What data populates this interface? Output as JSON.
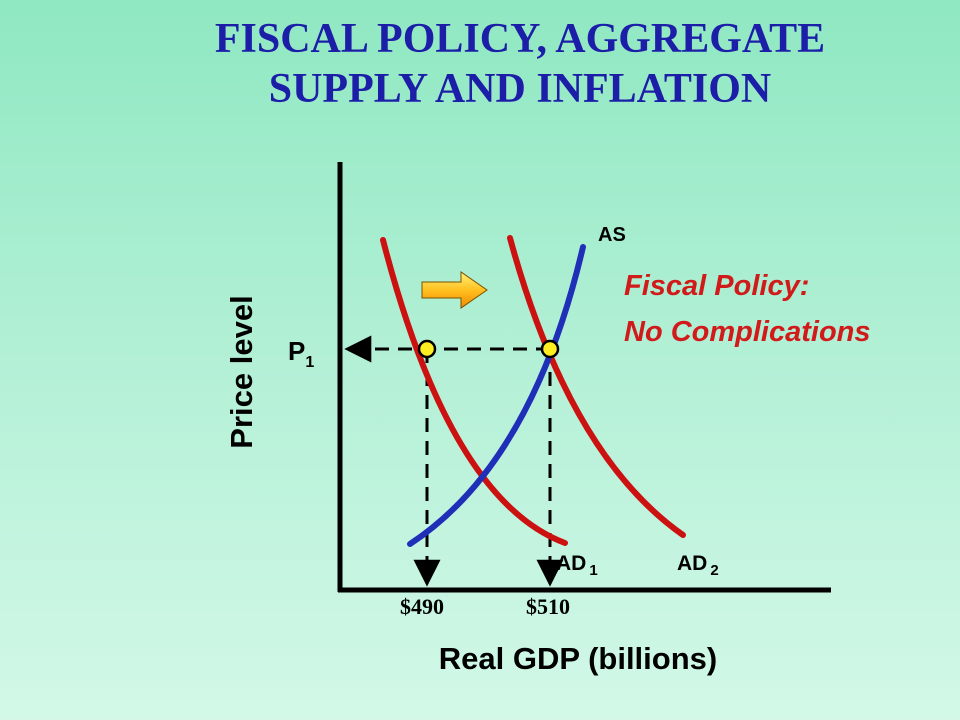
{
  "title": {
    "line1": "FISCAL POLICY, AGGREGATE",
    "line2": "SUPPLY AND INFLATION"
  },
  "axes": {
    "y_label": "Price level",
    "x_label": "Real GDP (billions)"
  },
  "price_level": {
    "base": "P",
    "sub": "1"
  },
  "gdp_ticks": [
    "$490",
    "$510"
  ],
  "curves": {
    "as": {
      "label": "AS"
    },
    "ad1": {
      "base": "AD",
      "sub": "1"
    },
    "ad2": {
      "base": "AD",
      "sub": "2"
    }
  },
  "note": {
    "line1": "Fiscal Policy:",
    "line2": "No Complications"
  },
  "colors": {
    "title": "#1c1ea8",
    "ad_curves": "#cc1111",
    "as_curve": "#1f2fb8",
    "note": "#d11a1a",
    "equilibrium_point": "#ffee22",
    "shift_arrow": "#ffb020"
  },
  "icons": {
    "shift_arrow": "right-arrow-icon"
  }
}
